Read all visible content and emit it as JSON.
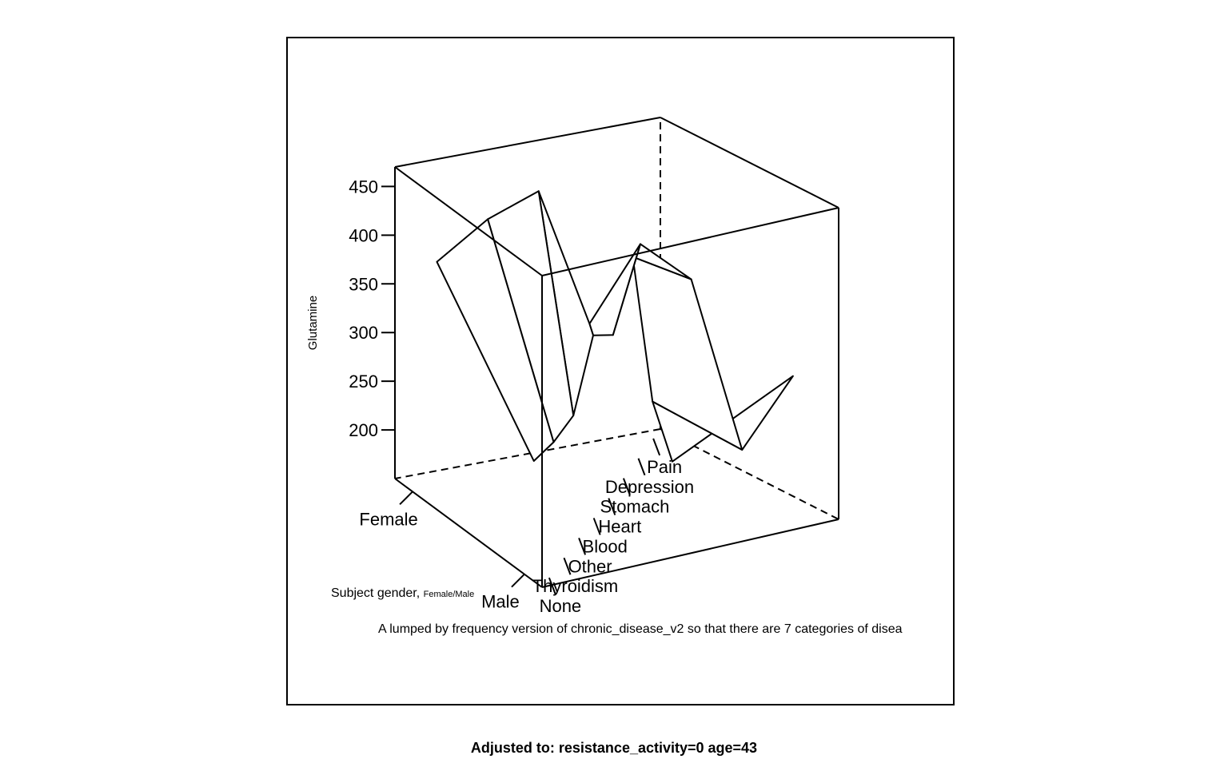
{
  "caption": "Adjusted to: resistance_activity=0 age=43",
  "chart_data": {
    "type": "surface",
    "zlabel": "Glutamine",
    "xlabel": "A lumped by frequency version of chronic_disease_v2 so that there are 7 categories of disea",
    "ylabel_main": "Subject gender, ",
    "ylabel_sub": "Female/Male",
    "x_categories": [
      "None",
      "Thyroidism",
      "Other",
      "Blood",
      "Heart",
      "Stomach",
      "Depression",
      "Pain"
    ],
    "y_categories": [
      "Female",
      "Male"
    ],
    "z_ticks": [
      200,
      250,
      300,
      350,
      400,
      450
    ],
    "zlim": [
      150,
      470
    ],
    "surface": {
      "Female": [
        387,
        433,
        464,
        330,
        414,
        380,
        207,
        285
      ],
      "Male": [
        258,
        260,
        270,
        335,
        318,
        381,
        215,
        136
      ]
    }
  }
}
